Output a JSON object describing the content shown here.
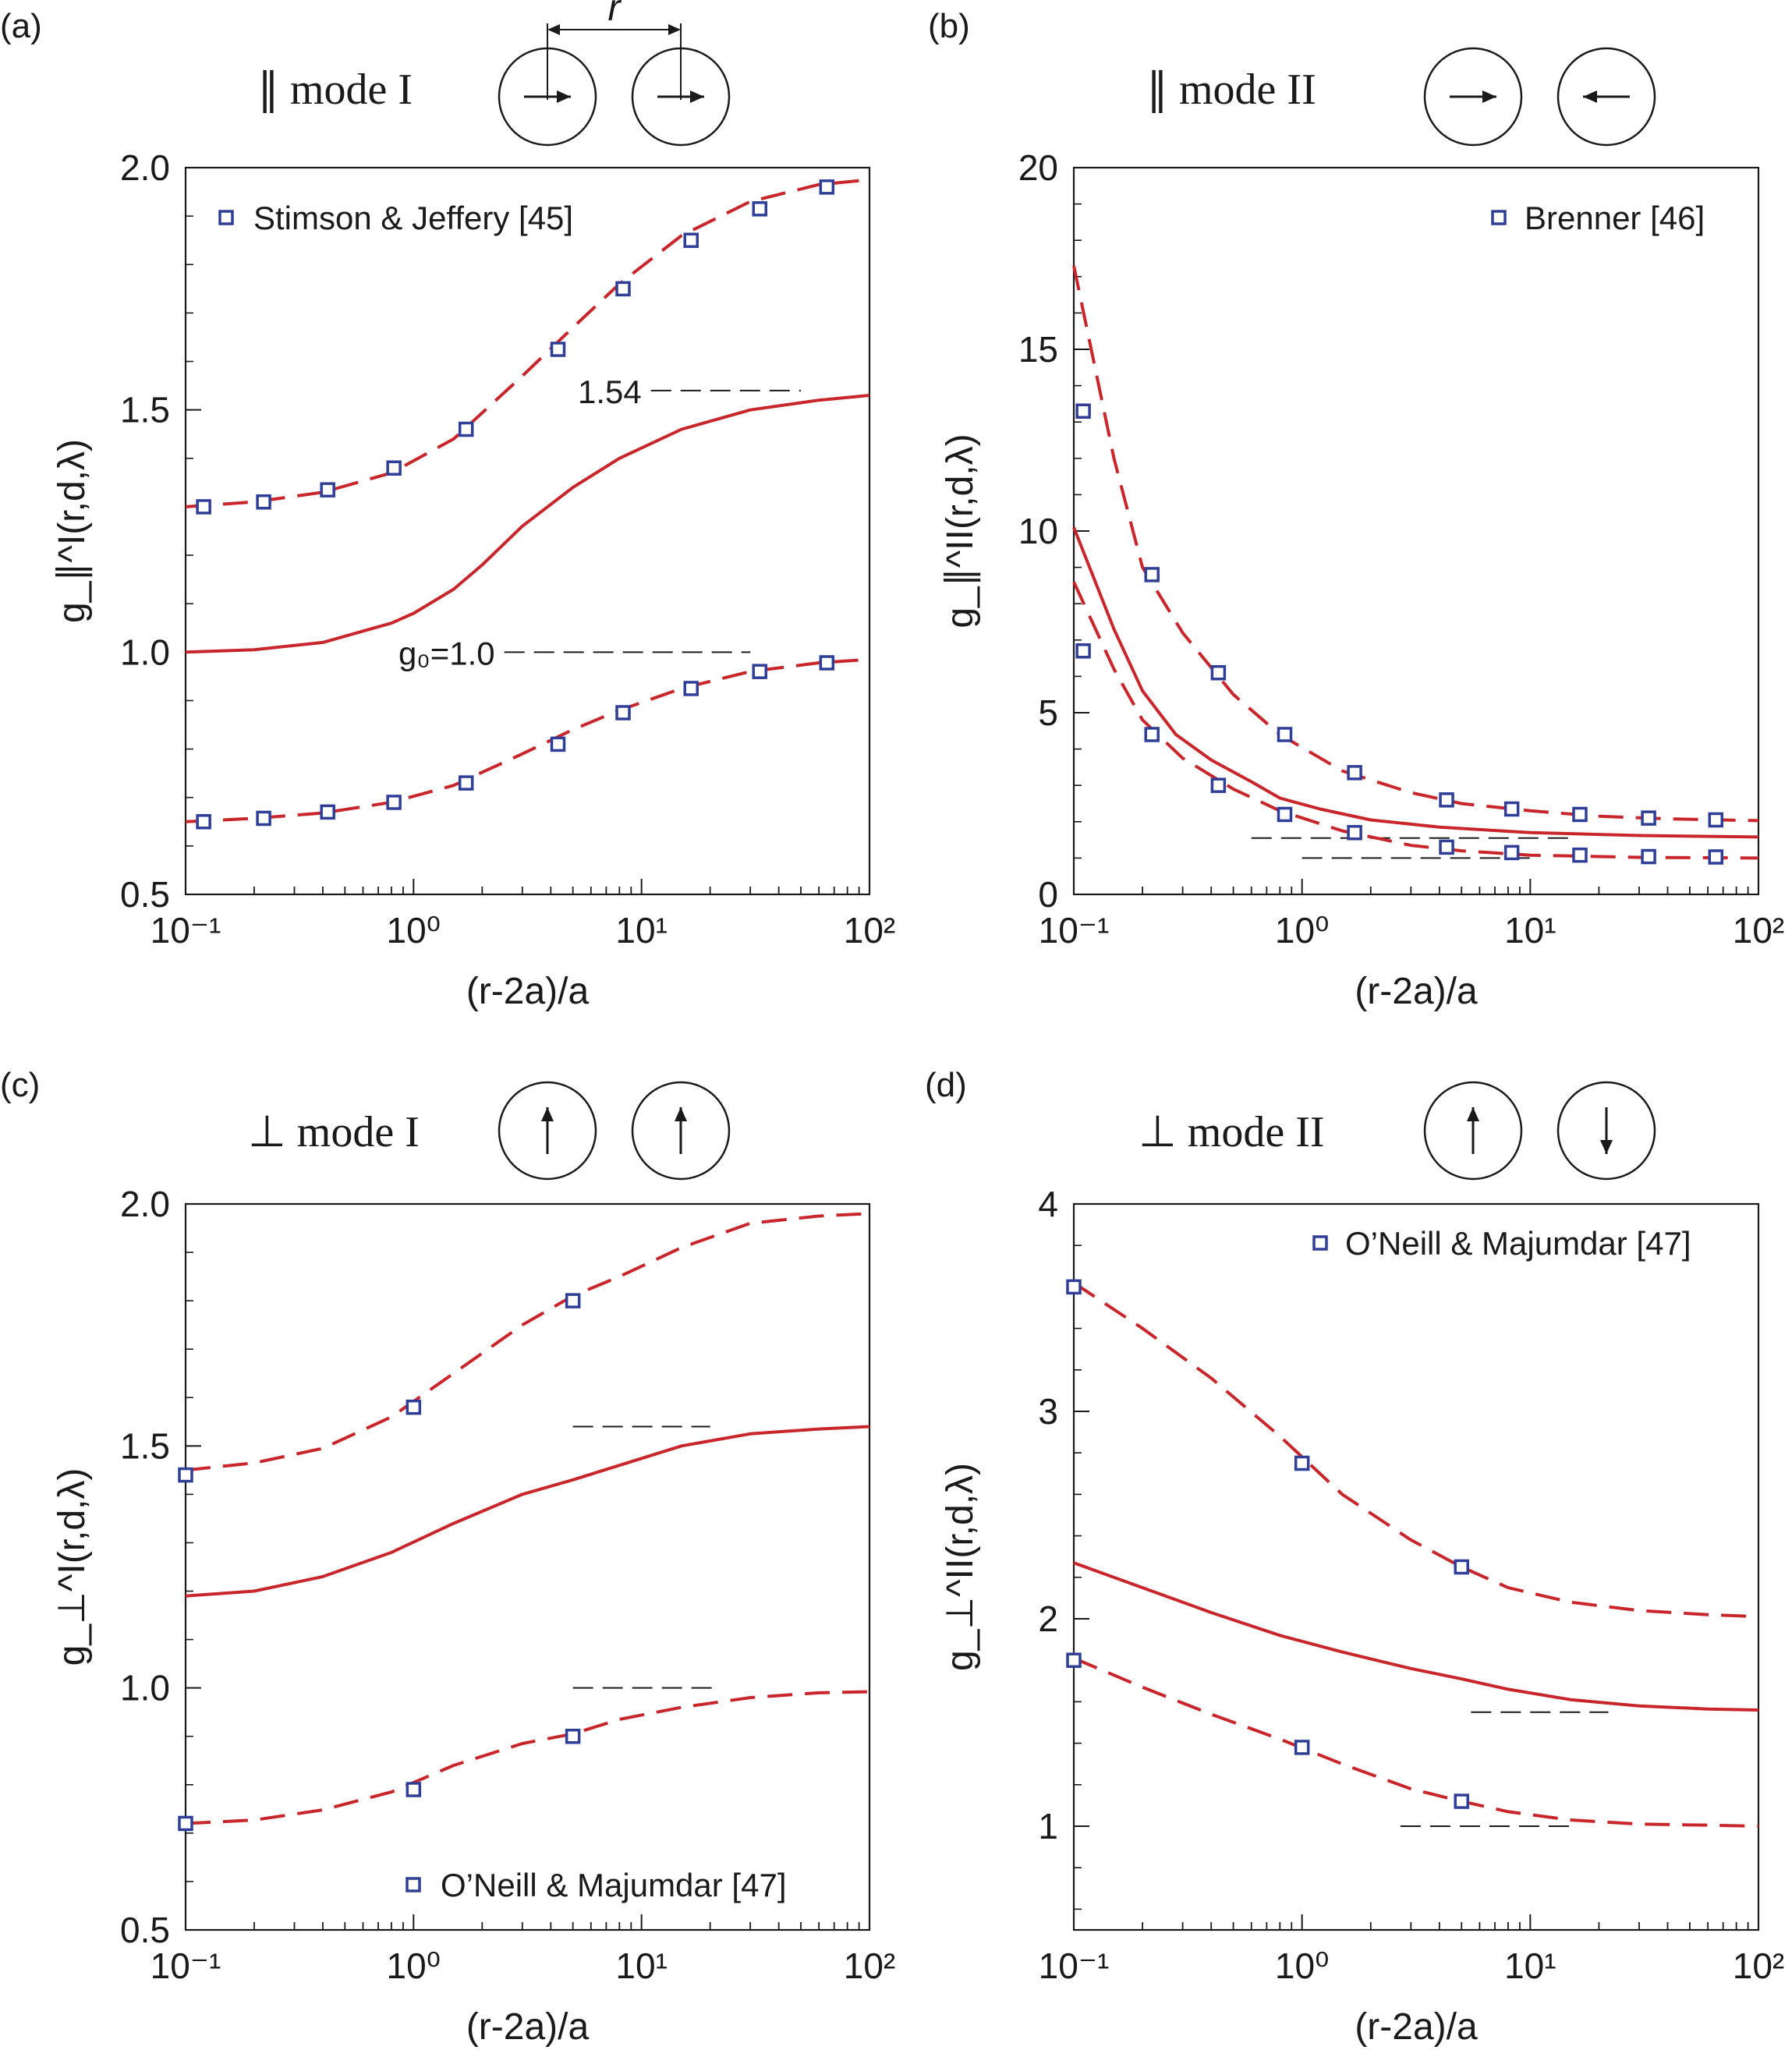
{
  "colors": {
    "curve": "#c8262b",
    "marker": "#2f3e97",
    "axis": "#1a1a1a",
    "ref": "#1a1a1a"
  },
  "chart_data": [
    {
      "panel": "(a)",
      "type": "line",
      "title": "∥ mode I",
      "schematic": [
        "→",
        "→"
      ],
      "separation_label": "r",
      "xlabel": "(r-2a)/a",
      "ylabel": "g_∥^I(r,d,λ)",
      "xscale": "log",
      "xlim": [
        0.1,
        100
      ],
      "ylim": [
        0.5,
        2.0
      ],
      "yticks": [
        "0.5",
        "1.0",
        "1.5",
        "2.0"
      ],
      "xticks": [
        "10⁻¹",
        "10⁰",
        "10¹",
        "10²"
      ],
      "legend": {
        "label": "Stimson & Jeffery [45]",
        "position": "top-left"
      },
      "annotations": [
        {
          "text": "1.54",
          "x_from": 11,
          "x_to": 50,
          "y": 1.54
        },
        {
          "text": "g₀=1.0",
          "x_from": 2.5,
          "x_to": 30,
          "y": 1.0
        }
      ],
      "series": [
        {
          "name": "upper",
          "style": "dashed",
          "x": [
            0.1,
            0.2,
            0.4,
            0.8,
            1.5,
            3,
            5,
            8,
            15,
            30,
            60,
            100
          ],
          "y": [
            1.3,
            1.31,
            1.33,
            1.37,
            1.44,
            1.57,
            1.67,
            1.76,
            1.86,
            1.93,
            1.965,
            1.975
          ]
        },
        {
          "name": "middle",
          "style": "solid",
          "x": [
            0.1,
            0.2,
            0.4,
            0.8,
            1,
            1.5,
            2,
            3,
            5,
            8,
            15,
            30,
            60,
            100
          ],
          "y": [
            1.0,
            1.005,
            1.02,
            1.06,
            1.08,
            1.13,
            1.18,
            1.26,
            1.34,
            1.4,
            1.46,
            1.5,
            1.52,
            1.53
          ]
        },
        {
          "name": "lower",
          "style": "dashed",
          "x": [
            0.1,
            0.2,
            0.4,
            0.8,
            1.5,
            3,
            5,
            8,
            15,
            30,
            60,
            100
          ],
          "y": [
            0.65,
            0.657,
            0.668,
            0.69,
            0.725,
            0.79,
            0.84,
            0.88,
            0.925,
            0.96,
            0.978,
            0.985
          ]
        },
        {
          "name": "Stimson & Jeffery [45]",
          "style": "markers",
          "x": [
            0.12,
            0.22,
            0.42,
            0.82,
            1.7,
            4.3,
            8.3,
            16.5,
            33,
            65
          ],
          "y": [
            1.3,
            1.31,
            1.335,
            1.38,
            1.46,
            1.625,
            1.75,
            1.85,
            1.915,
            1.96
          ]
        },
        {
          "name": "Stimson & Jeffery [45]",
          "style": "markers",
          "x": [
            0.12,
            0.22,
            0.42,
            0.82,
            1.7,
            4.3,
            8.3,
            16.5,
            33,
            65
          ],
          "y": [
            0.65,
            0.657,
            0.67,
            0.69,
            0.73,
            0.81,
            0.875,
            0.925,
            0.96,
            0.978
          ]
        }
      ]
    },
    {
      "panel": "(b)",
      "type": "line",
      "title": "∥ mode II",
      "schematic": [
        "→",
        "←"
      ],
      "xlabel": "(r-2a)/a",
      "ylabel": "g_∥^II(r,d,λ)",
      "xscale": "log",
      "xlim": [
        0.1,
        100
      ],
      "ylim": [
        0,
        20
      ],
      "yticks": [
        "0",
        "5",
        "10",
        "15",
        "20"
      ],
      "xticks": [
        "10⁻¹",
        "10⁰",
        "10¹",
        "10²"
      ],
      "legend": {
        "label": "Brenner [46]",
        "position": "top-right"
      },
      "annotations": [
        {
          "text": "",
          "x_from": 0.6,
          "x_to": 15,
          "y": 1.55
        },
        {
          "text": "",
          "x_from": 1.0,
          "x_to": 10,
          "y": 1.0
        }
      ],
      "series": [
        {
          "name": "upper",
          "style": "dashed",
          "x": [
            0.1,
            0.15,
            0.2,
            0.3,
            0.5,
            0.8,
            1.5,
            3,
            5,
            10,
            20,
            40,
            100
          ],
          "y": [
            17.3,
            12.0,
            9.0,
            7.2,
            5.5,
            4.4,
            3.4,
            2.8,
            2.5,
            2.3,
            2.15,
            2.08,
            2.03
          ]
        },
        {
          "name": "middle",
          "style": "solid",
          "x": [
            0.1,
            0.15,
            0.2,
            0.28,
            0.4,
            0.6,
            0.8,
            1.2,
            2,
            4,
            10,
            30,
            100
          ],
          "y": [
            10.1,
            7.3,
            5.6,
            4.4,
            3.7,
            3.1,
            2.65,
            2.35,
            2.05,
            1.85,
            1.7,
            1.62,
            1.58
          ]
        },
        {
          "name": "lower",
          "style": "dashed",
          "x": [
            0.1,
            0.15,
            0.2,
            0.3,
            0.5,
            0.8,
            1.5,
            3,
            5,
            10,
            30,
            100
          ],
          "y": [
            8.6,
            6.2,
            4.8,
            3.75,
            2.9,
            2.3,
            1.75,
            1.35,
            1.2,
            1.08,
            1.02,
            1.0
          ]
        },
        {
          "name": "Brenner [46]",
          "style": "markers",
          "x": [
            0.11,
            0.22,
            0.43,
            0.84,
            1.7,
            4.3,
            8.3,
            16.5,
            33,
            65
          ],
          "y": [
            13.3,
            8.8,
            6.1,
            4.4,
            3.35,
            2.6,
            2.35,
            2.2,
            2.1,
            2.05
          ]
        },
        {
          "name": "Brenner [46]",
          "style": "markers",
          "x": [
            0.11,
            0.22,
            0.43,
            0.84,
            1.7,
            4.3,
            8.3,
            16.5,
            33,
            65
          ],
          "y": [
            6.7,
            4.4,
            3.0,
            2.2,
            1.7,
            1.3,
            1.15,
            1.08,
            1.04,
            1.03
          ]
        }
      ]
    },
    {
      "panel": "(c)",
      "type": "line",
      "title": "⊥ mode I",
      "schematic": [
        "↑",
        "↑"
      ],
      "xlabel": "(r-2a)/a",
      "ylabel": "g_⊥^I(r,d,λ)",
      "xscale": "log",
      "xlim": [
        0.1,
        100
      ],
      "ylim": [
        0.5,
        2.0
      ],
      "yticks": [
        "0.5",
        "1.0",
        "1.5",
        "2.0"
      ],
      "xticks": [
        "10⁻¹",
        "10⁰",
        "10¹",
        "10²"
      ],
      "legend": {
        "label": "O’Neill & Majumdar [47]",
        "position": "bottom-right"
      },
      "annotations": [
        {
          "text": "",
          "x_from": 5,
          "x_to": 20,
          "y": 1.54
        },
        {
          "text": "",
          "x_from": 5,
          "x_to": 22,
          "y": 1.0
        }
      ],
      "series": [
        {
          "name": "upper",
          "style": "dashed",
          "x": [
            0.1,
            0.2,
            0.4,
            0.8,
            1.5,
            3,
            5,
            8,
            15,
            30,
            60,
            100
          ],
          "y": [
            1.45,
            1.465,
            1.495,
            1.56,
            1.65,
            1.75,
            1.81,
            1.85,
            1.91,
            1.96,
            1.975,
            1.98
          ]
        },
        {
          "name": "middle",
          "style": "solid",
          "x": [
            0.1,
            0.2,
            0.4,
            0.8,
            1.5,
            3,
            5,
            8,
            15,
            30,
            60,
            100
          ],
          "y": [
            1.19,
            1.2,
            1.23,
            1.28,
            1.34,
            1.4,
            1.43,
            1.46,
            1.5,
            1.525,
            1.535,
            1.54
          ]
        },
        {
          "name": "lower",
          "style": "dashed",
          "x": [
            0.1,
            0.2,
            0.4,
            0.8,
            1.5,
            3,
            5,
            8,
            15,
            30,
            60,
            100
          ],
          "y": [
            0.72,
            0.727,
            0.748,
            0.785,
            0.84,
            0.885,
            0.905,
            0.935,
            0.96,
            0.98,
            0.99,
            0.992
          ]
        },
        {
          "name": "O’Neill & Majumdar [47]",
          "style": "markers",
          "x": [
            0.1,
            1,
            5
          ],
          "y": [
            1.44,
            1.58,
            1.8
          ]
        },
        {
          "name": "O’Neill & Majumdar [47]",
          "style": "markers",
          "x": [
            0.1,
            1,
            5
          ],
          "y": [
            0.72,
            0.79,
            0.9
          ]
        }
      ]
    },
    {
      "panel": "(d)",
      "type": "line",
      "title": "⊥ mode II",
      "schematic": [
        "↑",
        "↓"
      ],
      "xlabel": "(r-2a)/a",
      "ylabel": "g_⊥^II(r,d,λ)",
      "xscale": "log",
      "xlim": [
        0.1,
        100
      ],
      "ylim": [
        0.5,
        4.0
      ],
      "yticks": [
        "1",
        "2",
        "3",
        "4"
      ],
      "xticks": [
        "10⁻¹",
        "10⁰",
        "10¹",
        "10²"
      ],
      "legend": {
        "label": "O’Neill & Majumdar [47]",
        "position": "top-right"
      },
      "annotations": [
        {
          "text": "",
          "x_from": 5.5,
          "x_to": 22,
          "y": 1.55
        },
        {
          "text": "",
          "x_from": 2.7,
          "x_to": 16,
          "y": 1.0
        }
      ],
      "series": [
        {
          "name": "upper",
          "style": "dashed",
          "x": [
            0.1,
            0.2,
            0.4,
            0.8,
            1.5,
            3,
            5,
            8,
            15,
            30,
            60,
            100
          ],
          "y": [
            3.62,
            3.4,
            3.16,
            2.88,
            2.6,
            2.38,
            2.25,
            2.15,
            2.08,
            2.04,
            2.02,
            2.01
          ]
        },
        {
          "name": "middle",
          "style": "solid",
          "x": [
            0.1,
            0.2,
            0.4,
            0.8,
            1.5,
            3,
            5,
            8,
            15,
            30,
            60,
            100
          ],
          "y": [
            2.27,
            2.15,
            2.03,
            1.92,
            1.84,
            1.76,
            1.71,
            1.66,
            1.61,
            1.58,
            1.565,
            1.56
          ]
        },
        {
          "name": "lower",
          "style": "dashed",
          "x": [
            0.1,
            0.2,
            0.4,
            0.8,
            1.5,
            3,
            5,
            8,
            15,
            30,
            60,
            100
          ],
          "y": [
            1.81,
            1.67,
            1.54,
            1.42,
            1.3,
            1.18,
            1.12,
            1.07,
            1.03,
            1.01,
            1.005,
            1.0
          ]
        },
        {
          "name": "O’Neill & Majumdar [47]",
          "style": "markers",
          "x": [
            0.1,
            1,
            5
          ],
          "y": [
            3.6,
            2.75,
            2.25
          ]
        },
        {
          "name": "O’Neill & Majumdar [47]",
          "style": "markers",
          "x": [
            0.1,
            1,
            5
          ],
          "y": [
            1.8,
            1.38,
            1.12
          ]
        }
      ]
    }
  ]
}
